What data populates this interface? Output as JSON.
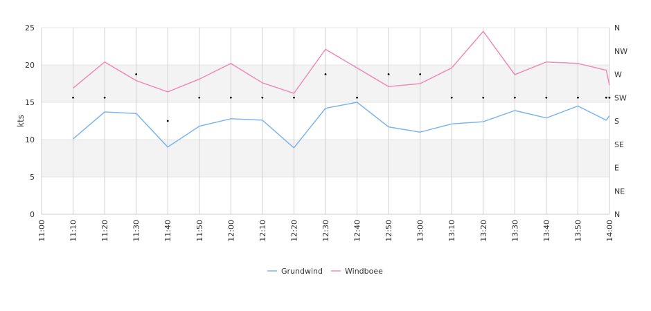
{
  "chart_data": {
    "type": "line",
    "x": [
      "11:00",
      "11:10",
      "11:20",
      "11:30",
      "11:40",
      "11:50",
      "12:00",
      "12:10",
      "12:20",
      "12:30",
      "12:40",
      "12:50",
      "13:00",
      "13:10",
      "13:20",
      "13:30",
      "13:40",
      "13:50",
      "14:00"
    ],
    "ylabel": "kts",
    "ylim": [
      0,
      25
    ],
    "yticks": [
      0,
      5,
      10,
      15,
      20,
      25
    ],
    "right_axis_ticks": [
      "N",
      "NE",
      "E",
      "SE",
      "S",
      "SW",
      "W",
      "NW",
      "N"
    ],
    "grid": true,
    "band_ranges": [
      [
        5,
        10
      ],
      [
        15,
        20
      ]
    ],
    "legend_position": "bottom-center",
    "series": [
      {
        "name": "Grundwind",
        "color": "#7cb5ec",
        "points": [
          [
            "11:10",
            10.1
          ],
          [
            "11:20",
            13.7
          ],
          [
            "11:30",
            13.5
          ],
          [
            "11:40",
            9.0
          ],
          [
            "11:50",
            11.8
          ],
          [
            "12:00",
            12.8
          ],
          [
            "12:10",
            12.6
          ],
          [
            "12:20",
            8.9
          ],
          [
            "12:30",
            14.2
          ],
          [
            "12:40",
            15.0
          ],
          [
            "12:50",
            11.7
          ],
          [
            "13:00",
            11.0
          ],
          [
            "13:10",
            12.1
          ],
          [
            "13:20",
            12.4
          ],
          [
            "13:30",
            13.9
          ],
          [
            "13:40",
            12.9
          ],
          [
            "13:50",
            14.5
          ],
          [
            "13:59",
            12.6
          ],
          [
            "14:00",
            13.2
          ]
        ]
      },
      {
        "name": "Windboee",
        "color": "#f08bb8",
        "points": [
          [
            "11:10",
            16.9
          ],
          [
            "11:20",
            20.4
          ],
          [
            "11:30",
            17.9
          ],
          [
            "11:40",
            16.4
          ],
          [
            "11:50",
            18.1
          ],
          [
            "12:00",
            20.2
          ],
          [
            "12:10",
            17.6
          ],
          [
            "12:20",
            16.2
          ],
          [
            "12:30",
            22.1
          ],
          [
            "12:40",
            19.6
          ],
          [
            "12:50",
            17.1
          ],
          [
            "13:00",
            17.5
          ],
          [
            "13:10",
            19.6
          ],
          [
            "13:20",
            24.5
          ],
          [
            "13:30",
            18.7
          ],
          [
            "13:40",
            20.4
          ],
          [
            "13:50",
            20.2
          ],
          [
            "13:59",
            19.3
          ],
          [
            "14:00",
            17.3
          ]
        ]
      }
    ],
    "direction_points": [
      [
        "11:10",
        "SW"
      ],
      [
        "11:20",
        "SW"
      ],
      [
        "11:30",
        "W"
      ],
      [
        "11:40",
        "S"
      ],
      [
        "11:50",
        "SW"
      ],
      [
        "12:00",
        "SW"
      ],
      [
        "12:10",
        "SW"
      ],
      [
        "12:20",
        "SW"
      ],
      [
        "12:30",
        "W"
      ],
      [
        "12:40",
        "SW"
      ],
      [
        "12:50",
        "W"
      ],
      [
        "13:00",
        "W"
      ],
      [
        "13:10",
        "SW"
      ],
      [
        "13:20",
        "SW"
      ],
      [
        "13:30",
        "SW"
      ],
      [
        "13:40",
        "SW"
      ],
      [
        "13:50",
        "SW"
      ],
      [
        "13:59",
        "SW"
      ],
      [
        "14:00",
        "SW"
      ]
    ]
  }
}
